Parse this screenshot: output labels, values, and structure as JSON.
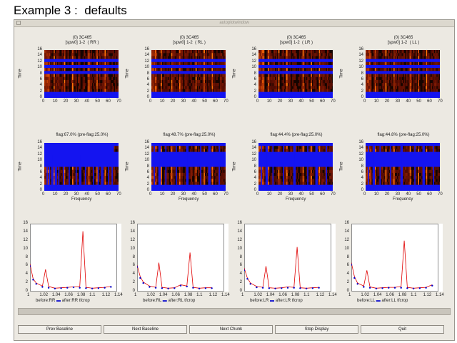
{
  "slide_title": "Example 3 :  defaults",
  "window": {
    "title": "autoplotwindow"
  },
  "colors": {
    "flag_blue": "#1414f0",
    "heat_dark": "#150400",
    "heat_bright": "#ff7a10",
    "line_red": "#e00000",
    "after_blue": "#0000cc"
  },
  "row1": {
    "panels": [
      {
        "title": "(0) 3C465",
        "subtitle": "[spw0] 1-2  ( RR )"
      },
      {
        "title": "(0) 3C465",
        "subtitle": "[spw0] 1-2  ( RL )"
      },
      {
        "title": "(0) 3C465",
        "subtitle": "[spw0] 1-2  ( LR )"
      },
      {
        "title": "(0) 3C465",
        "subtitle": "[spw0] 1-2  ( LL )"
      }
    ],
    "ylabel": "Time",
    "yticks": [
      "16",
      "14",
      "12",
      "10",
      "8",
      "6",
      "4",
      "2",
      "0"
    ],
    "xticks": [
      "0",
      "10",
      "20",
      "30",
      "40",
      "50",
      "60",
      "70"
    ]
  },
  "row2": {
    "panels": [
      {
        "title": "flag:67.0% (pre-flag:25.0%)"
      },
      {
        "title": "flag:48.7% (pre-flag:25.0%)"
      },
      {
        "title": "flag:44.4% (pre-flag:25.0%)"
      },
      {
        "title": "flag:44.8% (pre-flag:25.0%)"
      }
    ],
    "ylabel": "Time",
    "xlabel": "Frequency",
    "yticks": [
      "16",
      "14",
      "12",
      "10",
      "8",
      "6",
      "4",
      "2",
      "0"
    ],
    "xticks": [
      "0",
      "10",
      "20",
      "30",
      "40",
      "50",
      "60",
      "70"
    ]
  },
  "row3": {
    "panels": [
      {
        "legend": [
          "before:RR",
          "after:RR",
          "tfcrop"
        ]
      },
      {
        "legend": [
          "before:RL",
          "after:RL",
          "tfcrop"
        ]
      },
      {
        "legend": [
          "before:LR",
          "after:LR",
          "tfcrop"
        ]
      },
      {
        "legend": [
          "before:LL",
          "after:LL",
          "tfcrop"
        ]
      }
    ],
    "yticks": [
      "16",
      "14",
      "12",
      "10",
      "8",
      "6",
      "4",
      "2",
      "0"
    ],
    "xticks": [
      "1",
      "1.02",
      "1.04",
      "1.06",
      "1.08",
      "1.1",
      "1.12",
      "1.14"
    ]
  },
  "chart_data": [
    {
      "type": "line",
      "title": "",
      "xlabel": "",
      "ylabel": "",
      "xlim": [
        1.0,
        1.14
      ],
      "ylim": [
        0,
        16
      ],
      "series": [
        {
          "name": "before:RR",
          "x": [
            1.0,
            1.005,
            1.01,
            1.02,
            1.025,
            1.03,
            1.04,
            1.05,
            1.06,
            1.07,
            1.08,
            1.085,
            1.09,
            1.1,
            1.11,
            1.12,
            1.13
          ],
          "y": [
            6.5,
            3.0,
            2.0,
            1.3,
            5.2,
            1.2,
            0.8,
            0.9,
            1.0,
            1.1,
            1.2,
            14.2,
            1.0,
            0.8,
            0.9,
            1.0,
            1.2
          ]
        },
        {
          "name": "after:RR",
          "x": [
            1.0,
            1.005,
            1.01,
            1.02,
            1.03,
            1.04,
            1.05,
            1.06,
            1.07,
            1.08,
            1.09,
            1.1,
            1.11,
            1.12,
            1.13
          ],
          "y": [
            6.0,
            2.8,
            1.8,
            1.1,
            0.9,
            0.7,
            0.8,
            0.9,
            1.0,
            0.9,
            0.8,
            0.7,
            0.8,
            0.9,
            1.1
          ]
        }
      ]
    },
    {
      "type": "line",
      "title": "",
      "xlabel": "",
      "ylabel": "",
      "xlim": [
        1.0,
        1.14
      ],
      "ylim": [
        0,
        16
      ],
      "series": [
        {
          "name": "before:RL",
          "x": [
            1.0,
            1.005,
            1.01,
            1.02,
            1.03,
            1.035,
            1.04,
            1.05,
            1.06,
            1.07,
            1.08,
            1.085,
            1.09,
            1.1,
            1.11,
            1.12
          ],
          "y": [
            6.2,
            3.5,
            2.2,
            1.3,
            1.0,
            6.8,
            1.0,
            0.8,
            0.9,
            1.6,
            1.3,
            9.2,
            1.0,
            0.8,
            0.9,
            0.9
          ]
        },
        {
          "name": "after:RL",
          "x": [
            1.0,
            1.005,
            1.01,
            1.02,
            1.03,
            1.04,
            1.05,
            1.06,
            1.07,
            1.08,
            1.09,
            1.1,
            1.11,
            1.12
          ],
          "y": [
            5.8,
            3.2,
            2.0,
            1.1,
            0.9,
            0.8,
            0.7,
            0.8,
            1.4,
            1.2,
            0.9,
            0.7,
            0.8,
            0.8
          ]
        }
      ]
    },
    {
      "type": "line",
      "title": "",
      "xlabel": "",
      "ylabel": "",
      "xlim": [
        1.0,
        1.14
      ],
      "ylim": [
        0,
        16
      ],
      "series": [
        {
          "name": "before:LR",
          "x": [
            1.0,
            1.005,
            1.01,
            1.02,
            1.03,
            1.035,
            1.04,
            1.05,
            1.06,
            1.07,
            1.08,
            1.085,
            1.09,
            1.1,
            1.11,
            1.12
          ],
          "y": [
            5.5,
            3.2,
            2.0,
            1.2,
            1.0,
            6.0,
            0.9,
            0.8,
            0.9,
            1.1,
            1.0,
            10.5,
            0.9,
            0.8,
            0.9,
            1.0
          ]
        },
        {
          "name": "after:LR",
          "x": [
            1.0,
            1.005,
            1.01,
            1.02,
            1.03,
            1.04,
            1.05,
            1.06,
            1.07,
            1.08,
            1.09,
            1.1,
            1.11,
            1.12
          ],
          "y": [
            5.0,
            3.0,
            1.8,
            1.0,
            0.9,
            0.8,
            0.7,
            0.8,
            0.9,
            0.9,
            0.8,
            0.7,
            0.8,
            0.9
          ]
        }
      ]
    },
    {
      "type": "line",
      "title": "",
      "xlabel": "",
      "ylabel": "",
      "xlim": [
        1.0,
        1.14
      ],
      "ylim": [
        0,
        16
      ],
      "series": [
        {
          "name": "before:LL",
          "x": [
            1.0,
            1.005,
            1.01,
            1.02,
            1.025,
            1.03,
            1.04,
            1.05,
            1.06,
            1.07,
            1.08,
            1.085,
            1.09,
            1.1,
            1.11,
            1.12,
            1.13
          ],
          "y": [
            6.8,
            3.5,
            2.0,
            1.3,
            5.0,
            1.1,
            0.8,
            0.9,
            1.0,
            1.0,
            1.2,
            12.0,
            1.0,
            0.8,
            0.9,
            1.0,
            1.6
          ]
        },
        {
          "name": "after:LL",
          "x": [
            1.0,
            1.005,
            1.01,
            1.02,
            1.03,
            1.04,
            1.05,
            1.06,
            1.07,
            1.08,
            1.09,
            1.1,
            1.11,
            1.12,
            1.13
          ],
          "y": [
            6.3,
            3.2,
            1.8,
            1.1,
            0.9,
            0.7,
            0.8,
            0.9,
            0.9,
            0.9,
            0.8,
            0.7,
            0.8,
            0.9,
            1.4
          ]
        }
      ]
    }
  ],
  "buttons": {
    "prev_baseline": "Prev Baseline",
    "next_baseline": "Next Baseline",
    "next_chunk": "Next Chunk",
    "stop_display": "Stop Display",
    "quit": "Quit"
  }
}
